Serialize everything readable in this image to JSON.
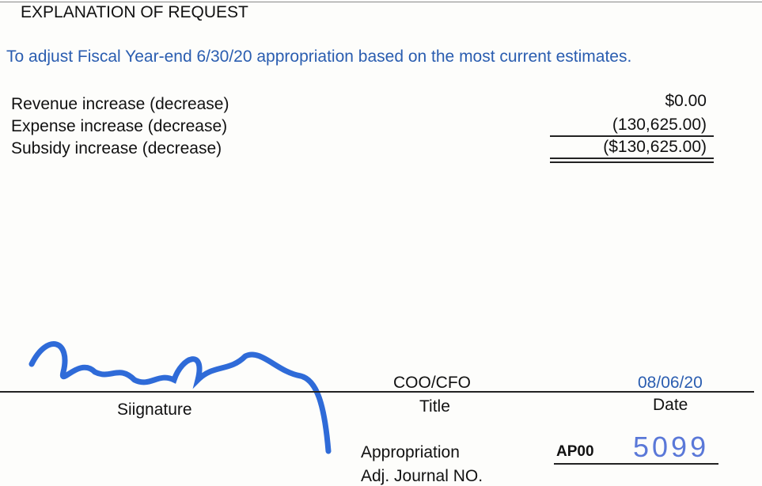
{
  "section": {
    "title": "EXPLANATION OF REQUEST",
    "description": "To adjust Fiscal Year-end 6/30/20 appropriation based on the most current estimates.",
    "rows": [
      {
        "label": "Revenue increase (decrease)",
        "amount": "$0.00"
      },
      {
        "label": "Expense increase (decrease)",
        "amount": "(130,625.00)"
      },
      {
        "label": "Subsidy increase (decrease)",
        "amount": "($130,625.00)"
      }
    ]
  },
  "signature": {
    "signature_label": "Siignature",
    "title_value": "COO/CFO",
    "title_label": "Title",
    "date_value": "08/06/20",
    "date_label": "Date"
  },
  "journal": {
    "label_line1": "Appropriation",
    "label_line2": "Adj. Journal NO.",
    "prefix": "AP00",
    "number": "5099"
  }
}
